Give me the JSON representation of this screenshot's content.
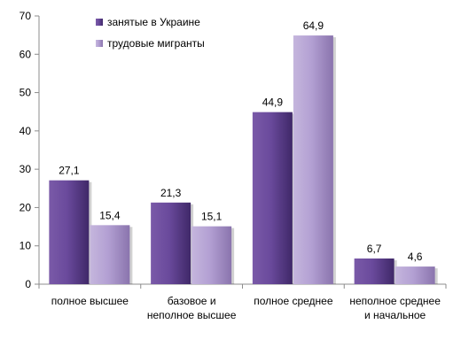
{
  "chart_data": {
    "type": "bar",
    "categories": [
      [
        "полное высшее"
      ],
      [
        "базовое и",
        "неполное высшее"
      ],
      [
        "полное среднее"
      ],
      [
        "неполное среднее",
        "и начальное"
      ]
    ],
    "series": [
      {
        "name": "занятые в Украине",
        "values": [
          27.1,
          21.3,
          44.9,
          6.7
        ],
        "labels": [
          "27,1",
          "21,3",
          "44,9",
          "6,7"
        ],
        "color": "#5e3e8f"
      },
      {
        "name": "трудовые мигранты",
        "values": [
          15.4,
          15.1,
          64.9,
          4.6
        ],
        "labels": [
          "15,4",
          "15,1",
          "64,9",
          "4,6"
        ],
        "color": "#a893c9"
      }
    ],
    "ylim": [
      0,
      70
    ],
    "yticks": [
      0,
      10,
      20,
      30,
      40,
      50,
      60,
      70
    ],
    "grid": false,
    "legend_position": "top-left"
  }
}
